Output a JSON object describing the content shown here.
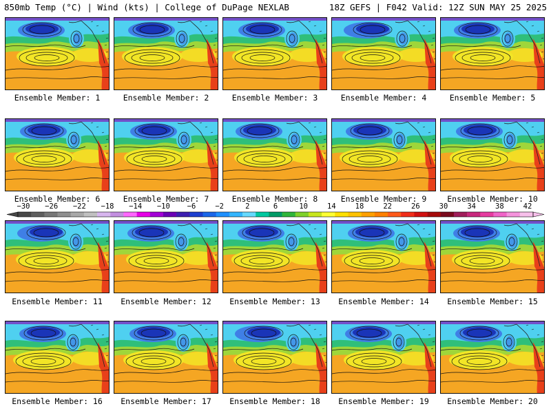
{
  "header": {
    "left_title": "850mb Temp (°C) | Wind (kts) | College of DuPage NEXLAB",
    "right_title": "18Z GEFS | F042 Valid: 12Z SUN MAY 25 2025"
  },
  "panels": [
    {
      "label": "Ensemble Member: 1"
    },
    {
      "label": "Ensemble Member: 2"
    },
    {
      "label": "Ensemble Member: 3"
    },
    {
      "label": "Ensemble Member: 4"
    },
    {
      "label": "Ensemble Member: 5"
    },
    {
      "label": "Ensemble Member: 6"
    },
    {
      "label": "Ensemble Member: 7"
    },
    {
      "label": "Ensemble Member: 8"
    },
    {
      "label": "Ensemble Member: 9"
    },
    {
      "label": "Ensemble Member: 10"
    },
    {
      "label": "Ensemble Member: 11"
    },
    {
      "label": "Ensemble Member: 12"
    },
    {
      "label": "Ensemble Member: 13"
    },
    {
      "label": "Ensemble Member: 14"
    },
    {
      "label": "Ensemble Member: 15"
    },
    {
      "label": "Ensemble Member: 16"
    },
    {
      "label": "Ensemble Member: 17"
    },
    {
      "label": "Ensemble Member: 18"
    },
    {
      "label": "Ensemble Member: 19"
    },
    {
      "label": "Ensemble Member: 20"
    }
  ],
  "colorbar": {
    "labels": [
      "−30",
      "−26",
      "−22",
      "−18",
      "−14",
      "−10",
      "−6",
      "−2",
      "2",
      "6",
      "10",
      "14",
      "18",
      "22",
      "26",
      "30",
      "34",
      "38",
      "42"
    ],
    "colors": [
      "#474747",
      "#5e5e5e",
      "#777777",
      "#8f8f8f",
      "#a8a8a8",
      "#c0c0c0",
      "#d7b5ee",
      "#c38ee0",
      "#ff66ff",
      "#e600e6",
      "#a300d6",
      "#6a00b5",
      "#3c1fb0",
      "#1d3fcf",
      "#1b66e8",
      "#1e90ff",
      "#33b5ff",
      "#66d9ff",
      "#00c8a0",
      "#009a66",
      "#2fb53a",
      "#7fd12b",
      "#c8e61e",
      "#ffff33",
      "#ffe000",
      "#ffc200",
      "#ffa000",
      "#ff8000",
      "#ff5a1a",
      "#f02d1a",
      "#d11010",
      "#a50a0a",
      "#7a0a1e",
      "#a01e5a",
      "#c8287d",
      "#e63ca0",
      "#f064c8",
      "#f593dc",
      "#f7bfea"
    ]
  },
  "map_colors": {
    "cold_core": "#1a35b8",
    "cold": "#3f7fe6",
    "cool": "#4fd0f0",
    "mild": "#2fbf7a",
    "warm_green": "#9fd63a",
    "yellow": "#f2e526",
    "orange": "#f5a623",
    "deep_orange": "#f08a1e",
    "hot": "#e8401a",
    "top_band": "#7b2fbf"
  }
}
